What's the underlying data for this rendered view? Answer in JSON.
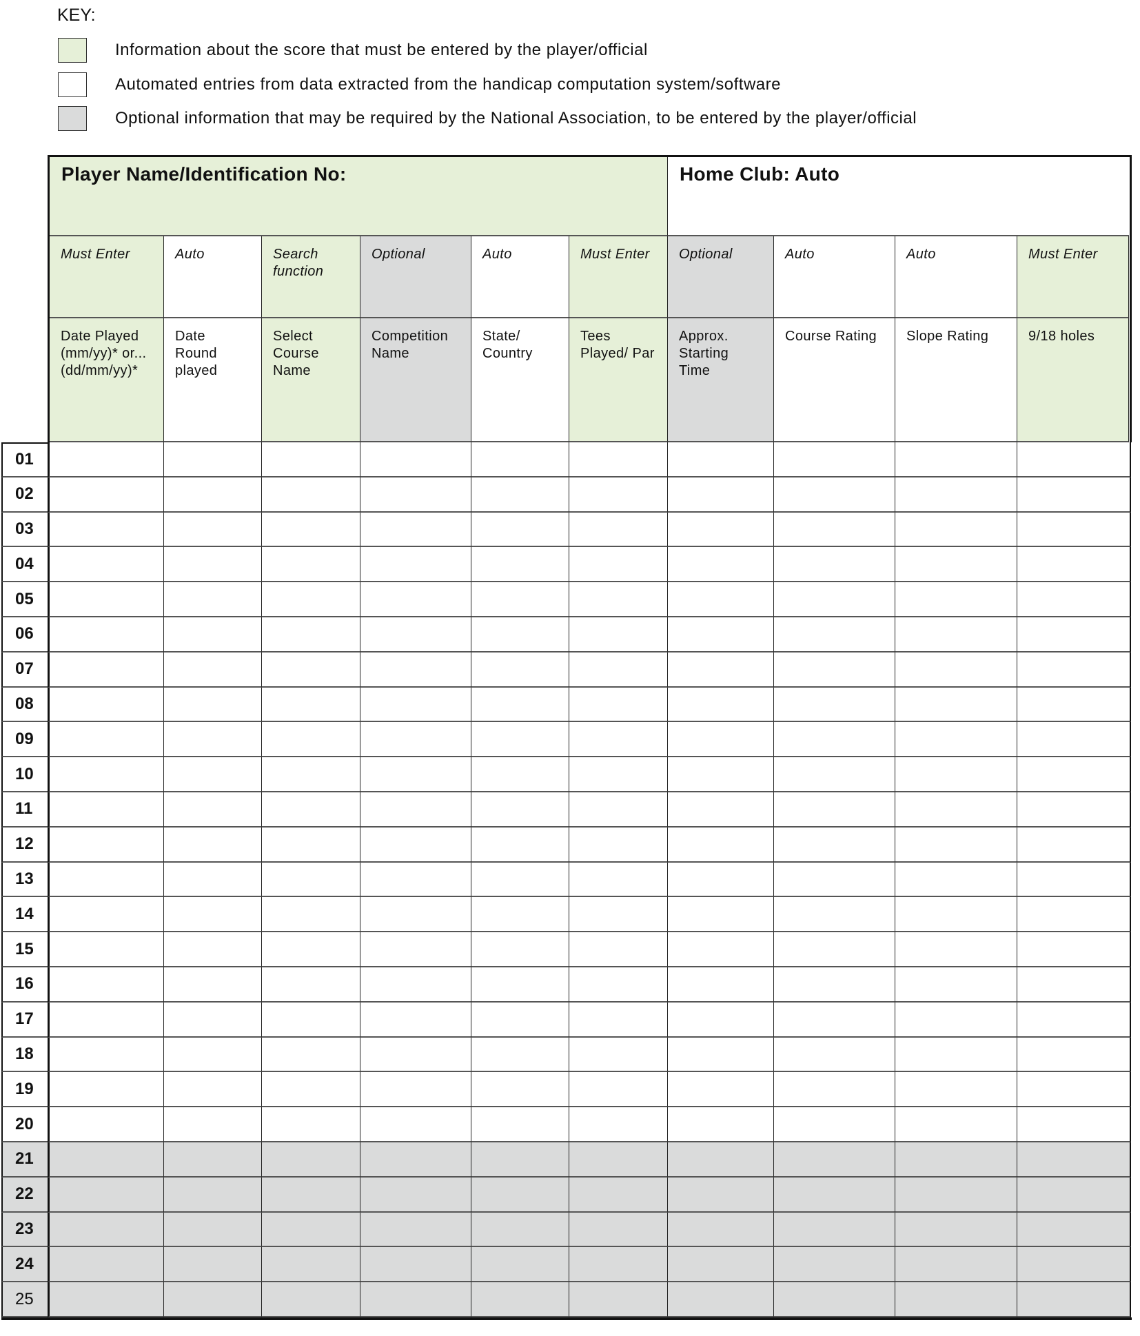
{
  "key": {
    "title": "KEY:",
    "items": [
      {
        "color": "green",
        "text": "Information about the score that must be entered by the player/official"
      },
      {
        "color": "white",
        "text": "Automated entries from data extracted from the handicap computation system/software"
      },
      {
        "color": "gray",
        "text": "Optional information that may be required by the National Association, to be entered by the player/official"
      }
    ]
  },
  "colors": {
    "green": "#e6f0d8",
    "white": "#ffffff",
    "gray": "#dadbdb"
  },
  "form": {
    "player_label": "Player Name/Identification No:",
    "home_club_label": "Home Club: Auto",
    "columns": [
      {
        "type": "Must Enter",
        "label": "Date Played (mm/yy)* or... (dd/mm/yy)*",
        "color": "green"
      },
      {
        "type": "Auto",
        "label": "Date Round played",
        "color": "white"
      },
      {
        "type": "Search function",
        "label": "Select Course Name",
        "color": "green"
      },
      {
        "type": "Optional",
        "label": "Competition Name",
        "color": "gray"
      },
      {
        "type": "Auto",
        "label": "State/ Country",
        "color": "white"
      },
      {
        "type": "Must Enter",
        "label": "Tees Played/ Par",
        "color": "green"
      },
      {
        "type": "Optional",
        "label": "Approx. Starting Time",
        "color": "gray"
      },
      {
        "type": "Auto",
        "label": "Course Rating",
        "color": "white"
      },
      {
        "type": "Auto",
        "label": "Slope Rating",
        "color": "white"
      },
      {
        "type": "Must Enter",
        "label": "9/18 holes",
        "color": "green"
      }
    ],
    "rows": [
      "01",
      "02",
      "03",
      "04",
      "05",
      "06",
      "07",
      "08",
      "09",
      "10",
      "11",
      "12",
      "13",
      "14",
      "15",
      "16",
      "17",
      "18",
      "19",
      "20",
      "21",
      "22",
      "23",
      "24",
      "25"
    ],
    "gray_rows_from": 21
  }
}
